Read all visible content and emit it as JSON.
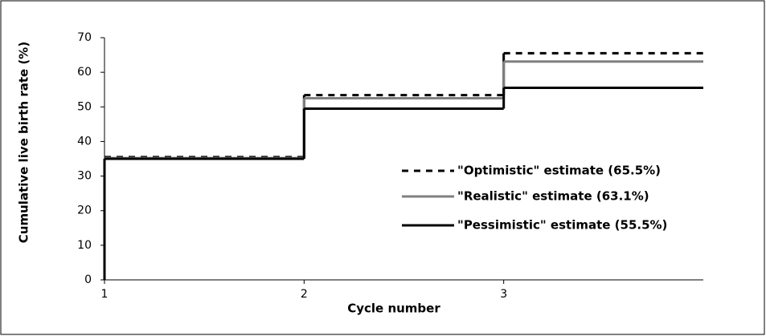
{
  "chart_data": {
    "type": "step",
    "x_label": "Cycle number",
    "y_label": "Cumulative live birth rate (%)",
    "x": [
      1,
      2,
      3
    ],
    "xlim": [
      1,
      4
    ],
    "xticks": [
      1,
      2,
      3
    ],
    "ylim": [
      0,
      70
    ],
    "yticks": [
      0,
      10,
      20,
      30,
      40,
      50,
      60,
      70
    ],
    "grid": false,
    "series": [
      {
        "name": "\"Optimistic\" estimate (65.5%)",
        "color": "#000000",
        "dash": true,
        "values": [
          35.5,
          53.4,
          65.5
        ]
      },
      {
        "name": "\"Realistic\" estimate (63.1%)",
        "color": "#808080",
        "dash": false,
        "values": [
          35.2,
          52.5,
          63.1
        ]
      },
      {
        "name": "\"Pessimistic\" estimate (55.5%)",
        "color": "#000000",
        "dash": false,
        "values": [
          35.0,
          49.5,
          55.5
        ]
      }
    ]
  }
}
